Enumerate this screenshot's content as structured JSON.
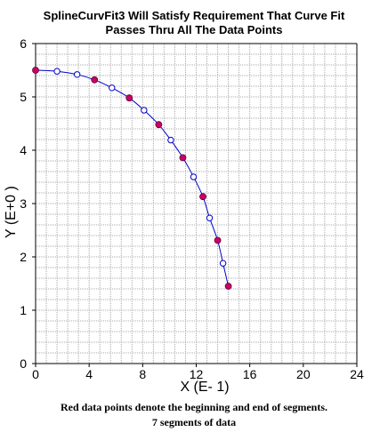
{
  "chart_data": {
    "type": "scatter",
    "title": "SplineCurvFit3 Will Satisfy Requirement That Curve Fit",
    "subtitle": "Passes Thru All The Data Points",
    "xlabel": "X (E- 1)",
    "ylabel": "Y (E+0 )",
    "xlim": [
      0,
      24
    ],
    "ylim": [
      0,
      6
    ],
    "x_ticks": [
      "0",
      "4",
      "8",
      "12",
      "16",
      "20",
      "24"
    ],
    "y_ticks": [
      "0",
      "1",
      "2",
      "3",
      "4",
      "5",
      "6"
    ],
    "minor_x_step": 0.8,
    "minor_y_step": 0.2,
    "grid": true,
    "curve_color": "#0000cc",
    "grid_color": "#a8a8a8",
    "series": [
      {
        "marker_color": "#cc0066",
        "filled": true,
        "points": [
          [
            0.0,
            5.5
          ],
          [
            4.4,
            5.32
          ],
          [
            7.0,
            4.98
          ],
          [
            9.2,
            4.48
          ],
          [
            11.0,
            3.86
          ],
          [
            12.5,
            3.13
          ],
          [
            13.6,
            2.31
          ],
          [
            14.4,
            1.45
          ]
        ]
      },
      {
        "marker_color": "#0000cc",
        "filled": false,
        "points": [
          [
            1.6,
            5.48
          ],
          [
            3.1,
            5.42
          ],
          [
            5.7,
            5.17
          ],
          [
            8.1,
            4.75
          ],
          [
            10.1,
            4.19
          ],
          [
            11.8,
            3.5
          ],
          [
            13.0,
            2.73
          ],
          [
            14.0,
            1.88
          ]
        ]
      }
    ],
    "captions": [
      "Red data points denote the beginning and end of segments.",
      "7 segments of data"
    ]
  }
}
